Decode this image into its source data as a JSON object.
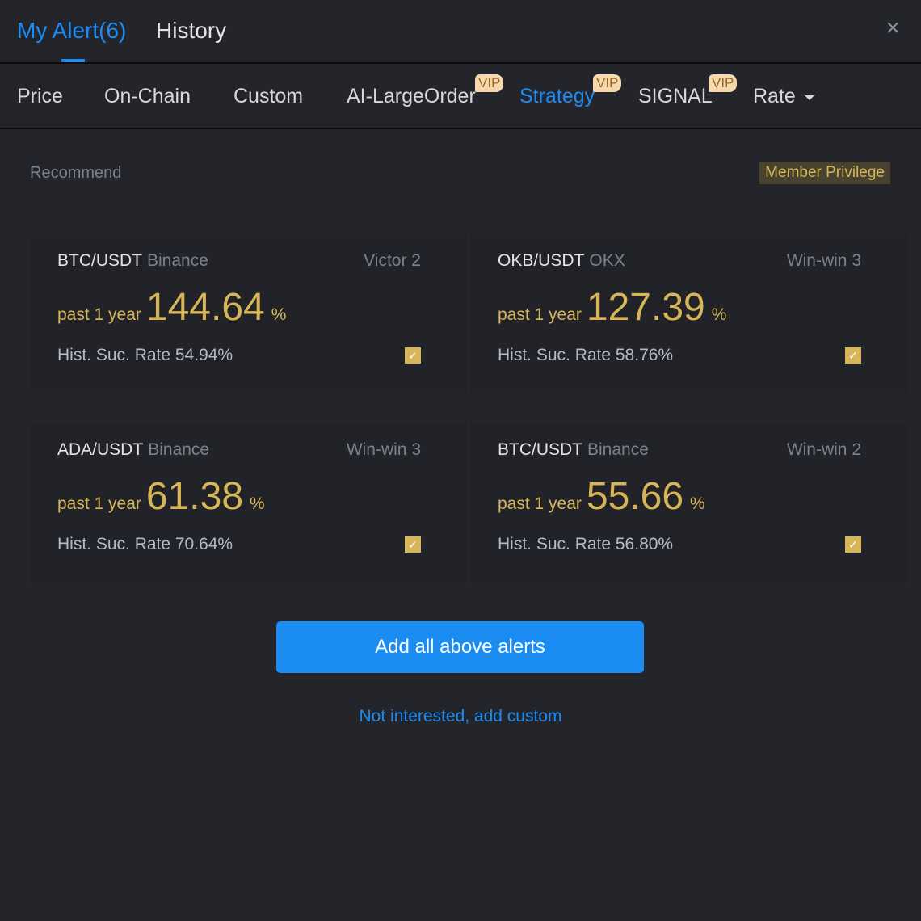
{
  "header": {
    "tabs": [
      {
        "label": "My Alert(6)",
        "active": true
      },
      {
        "label": "History",
        "active": false
      }
    ],
    "close_icon": "×"
  },
  "subtabs": [
    {
      "label": "Price"
    },
    {
      "label": "On-Chain"
    },
    {
      "label": "Custom"
    },
    {
      "label": "AI-LargeOrder",
      "badge": "VIP"
    },
    {
      "label": "Strategy",
      "badge": "VIP",
      "active": true
    },
    {
      "label": "SIGNAL",
      "badge": "VIP"
    },
    {
      "label": "Rate",
      "dropdown": true
    }
  ],
  "section": {
    "title": "Recommend",
    "privilege": "Member Privilege"
  },
  "cards": [
    {
      "pair": "BTC/USDT",
      "exchange": "Binance",
      "strategy": "Victor 2",
      "period": "past 1 year",
      "return": "144.64",
      "unit": "%",
      "rate": "Hist. Suc. Rate 54.94%",
      "checked": true
    },
    {
      "pair": "OKB/USDT",
      "exchange": "OKX",
      "strategy": "Win-win 3",
      "period": "past 1 year",
      "return": "127.39",
      "unit": "%",
      "rate": "Hist. Suc. Rate 58.76%",
      "checked": true
    },
    {
      "pair": "ADA/USDT",
      "exchange": "Binance",
      "strategy": "Win-win 3",
      "period": "past 1 year",
      "return": "61.38",
      "unit": "%",
      "rate": "Hist. Suc. Rate 70.64%",
      "checked": true
    },
    {
      "pair": "BTC/USDT",
      "exchange": "Binance",
      "strategy": "Win-win 2",
      "period": "past 1 year",
      "return": "55.66",
      "unit": "%",
      "rate": "Hist. Suc. Rate 56.80%",
      "checked": true
    }
  ],
  "actions": {
    "add_all": "Add all above alerts",
    "custom_link": "Not interested, add custom"
  },
  "colors": {
    "accent": "#1b8cf2",
    "gold": "#d7b65a",
    "background": "#24252b"
  }
}
